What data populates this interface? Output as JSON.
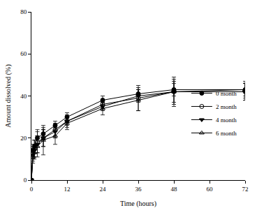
{
  "chart_data": {
    "type": "line",
    "x_label": "Time (hours)",
    "y_label": "Amount dissolved (%)",
    "xlim": [
      0,
      72
    ],
    "xticks": [
      0,
      12,
      24,
      36,
      48,
      60,
      72
    ],
    "ylim": [
      0,
      80
    ],
    "yticks": [
      0,
      20,
      40,
      60,
      80
    ],
    "grid": false,
    "legend": "lower right",
    "x": [
      0,
      0.5,
      1,
      2,
      4,
      8,
      12,
      24,
      36,
      48,
      72
    ],
    "series": [
      {
        "name": "0 month",
        "color": "#000000",
        "marker": "circle",
        "line_style": "solid",
        "values": [
          0,
          14,
          16,
          20,
          22,
          26,
          30,
          38,
          41,
          43,
          43
        ],
        "errors": [
          0,
          3,
          3,
          4,
          3,
          2,
          2,
          2,
          3,
          3,
          3
        ]
      },
      {
        "name": "2 month",
        "color": "#000000",
        "marker": "circle-open",
        "line_style": "solid",
        "values": [
          0,
          13,
          15,
          18,
          20,
          24,
          28,
          36,
          39,
          42,
          42
        ],
        "errors": [
          0,
          3,
          4,
          5,
          4,
          3,
          3,
          2,
          6,
          7,
          4
        ]
      },
      {
        "name": "4 month",
        "color": "#000000",
        "marker": "triangle-down",
        "line_style": "solid",
        "values": [
          0,
          12,
          14,
          17,
          20,
          23,
          28,
          35,
          40,
          42,
          42
        ],
        "errors": [
          0,
          3,
          3,
          4,
          4,
          3,
          2,
          2,
          3,
          5,
          4
        ]
      },
      {
        "name": "6 month",
        "color": "#000000",
        "marker": "triangle-up-open",
        "line_style": "solid",
        "values": [
          0,
          11,
          13,
          16,
          19,
          21,
          27,
          34,
          38,
          42,
          43
        ],
        "errors": [
          0,
          3,
          3,
          5,
          7,
          4,
          3,
          3,
          5,
          6,
          4
        ]
      }
    ]
  }
}
